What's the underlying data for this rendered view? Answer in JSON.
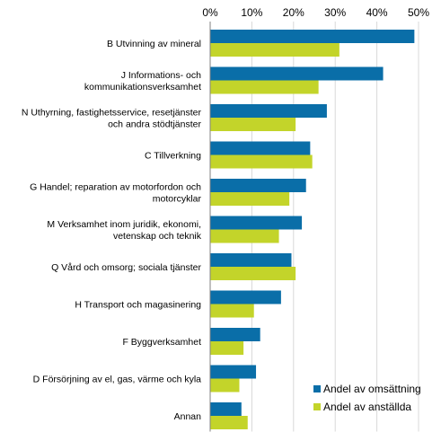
{
  "chart_data": {
    "type": "bar",
    "orientation": "horizontal",
    "categories": [
      [
        "B Utvinning av mineral"
      ],
      [
        "J Informations- och",
        "kommunikationsverksamhet"
      ],
      [
        "N Uthyrning, fastighetsservice, resetjänster",
        "och andra stödtjänster"
      ],
      [
        "C Tillverkning"
      ],
      [
        "G Handel; reparation av motorfordon och",
        "motorcyklar"
      ],
      [
        "M Verksamhet inom juridik, ekonomi,",
        "vetenskap och teknik"
      ],
      [
        "Q Vård och omsorg; sociala tjänster"
      ],
      [
        "H Transport och magasinering"
      ],
      [
        "F Byggverksamhet"
      ],
      [
        "D Försörjning av el, gas, värme och kyla"
      ],
      [
        "Annan"
      ]
    ],
    "series": [
      {
        "name": "Andel av omsättning",
        "color": "#0a6ea8",
        "values": [
          49,
          41.5,
          28,
          24,
          23,
          22,
          19.5,
          17,
          12,
          11,
          7.5
        ]
      },
      {
        "name": "Andel av anställda",
        "color": "#c3d42a",
        "values": [
          31,
          26,
          20.5,
          24.5,
          19,
          16.5,
          20.5,
          10.5,
          8,
          7,
          9
        ]
      }
    ],
    "xlim": [
      0,
      50
    ],
    "xticks": [
      "0%",
      "10%",
      "20%",
      "30%",
      "40%",
      "50%"
    ],
    "xtick_values": [
      0,
      10,
      20,
      30,
      40,
      50
    ],
    "grid": true,
    "legend_position": "bottom-right"
  }
}
